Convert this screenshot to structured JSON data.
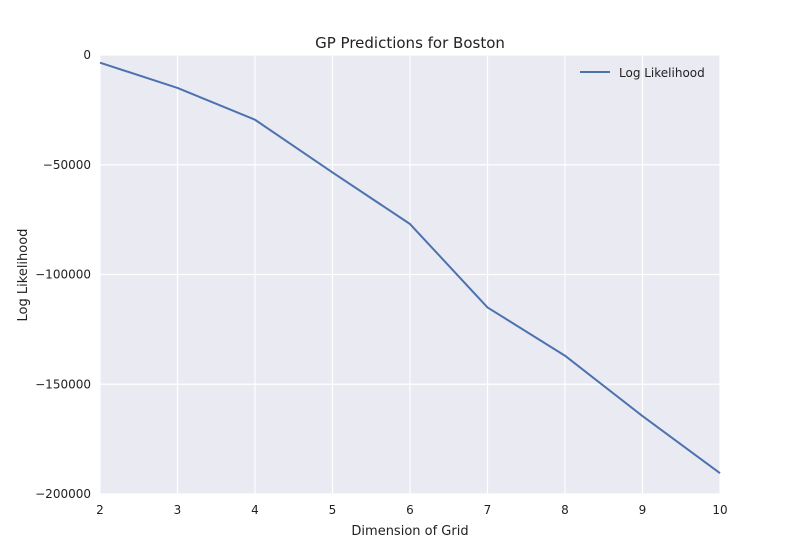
{
  "chart_data": {
    "type": "line",
    "title": "GP Predictions for Boston",
    "xlabel": "Dimension of Grid",
    "ylabel": "Log Likelihood",
    "x": [
      2,
      3,
      4,
      5,
      6,
      7,
      8,
      9,
      10
    ],
    "series": [
      {
        "name": "Log Likelihood",
        "values": [
          -3500,
          -15000,
          -29500,
          -53500,
          -77000,
          -115000,
          -137000,
          -164500,
          -190500
        ]
      }
    ],
    "xlim": [
      2,
      10
    ],
    "ylim": [
      -200000,
      0
    ],
    "xticks": [
      2,
      3,
      4,
      5,
      6,
      7,
      8,
      9,
      10
    ],
    "yticks": [
      0,
      -50000,
      -100000,
      -150000,
      -200000
    ],
    "ytick_labels": [
      "0",
      "−50000",
      "−100000",
      "−150000",
      "−200000"
    ],
    "grid": true,
    "legend_position": "top-right",
    "colors": {
      "plot_background": "#eaeaf2",
      "grid": "#ffffff",
      "series": [
        "#4c72b0"
      ]
    }
  }
}
